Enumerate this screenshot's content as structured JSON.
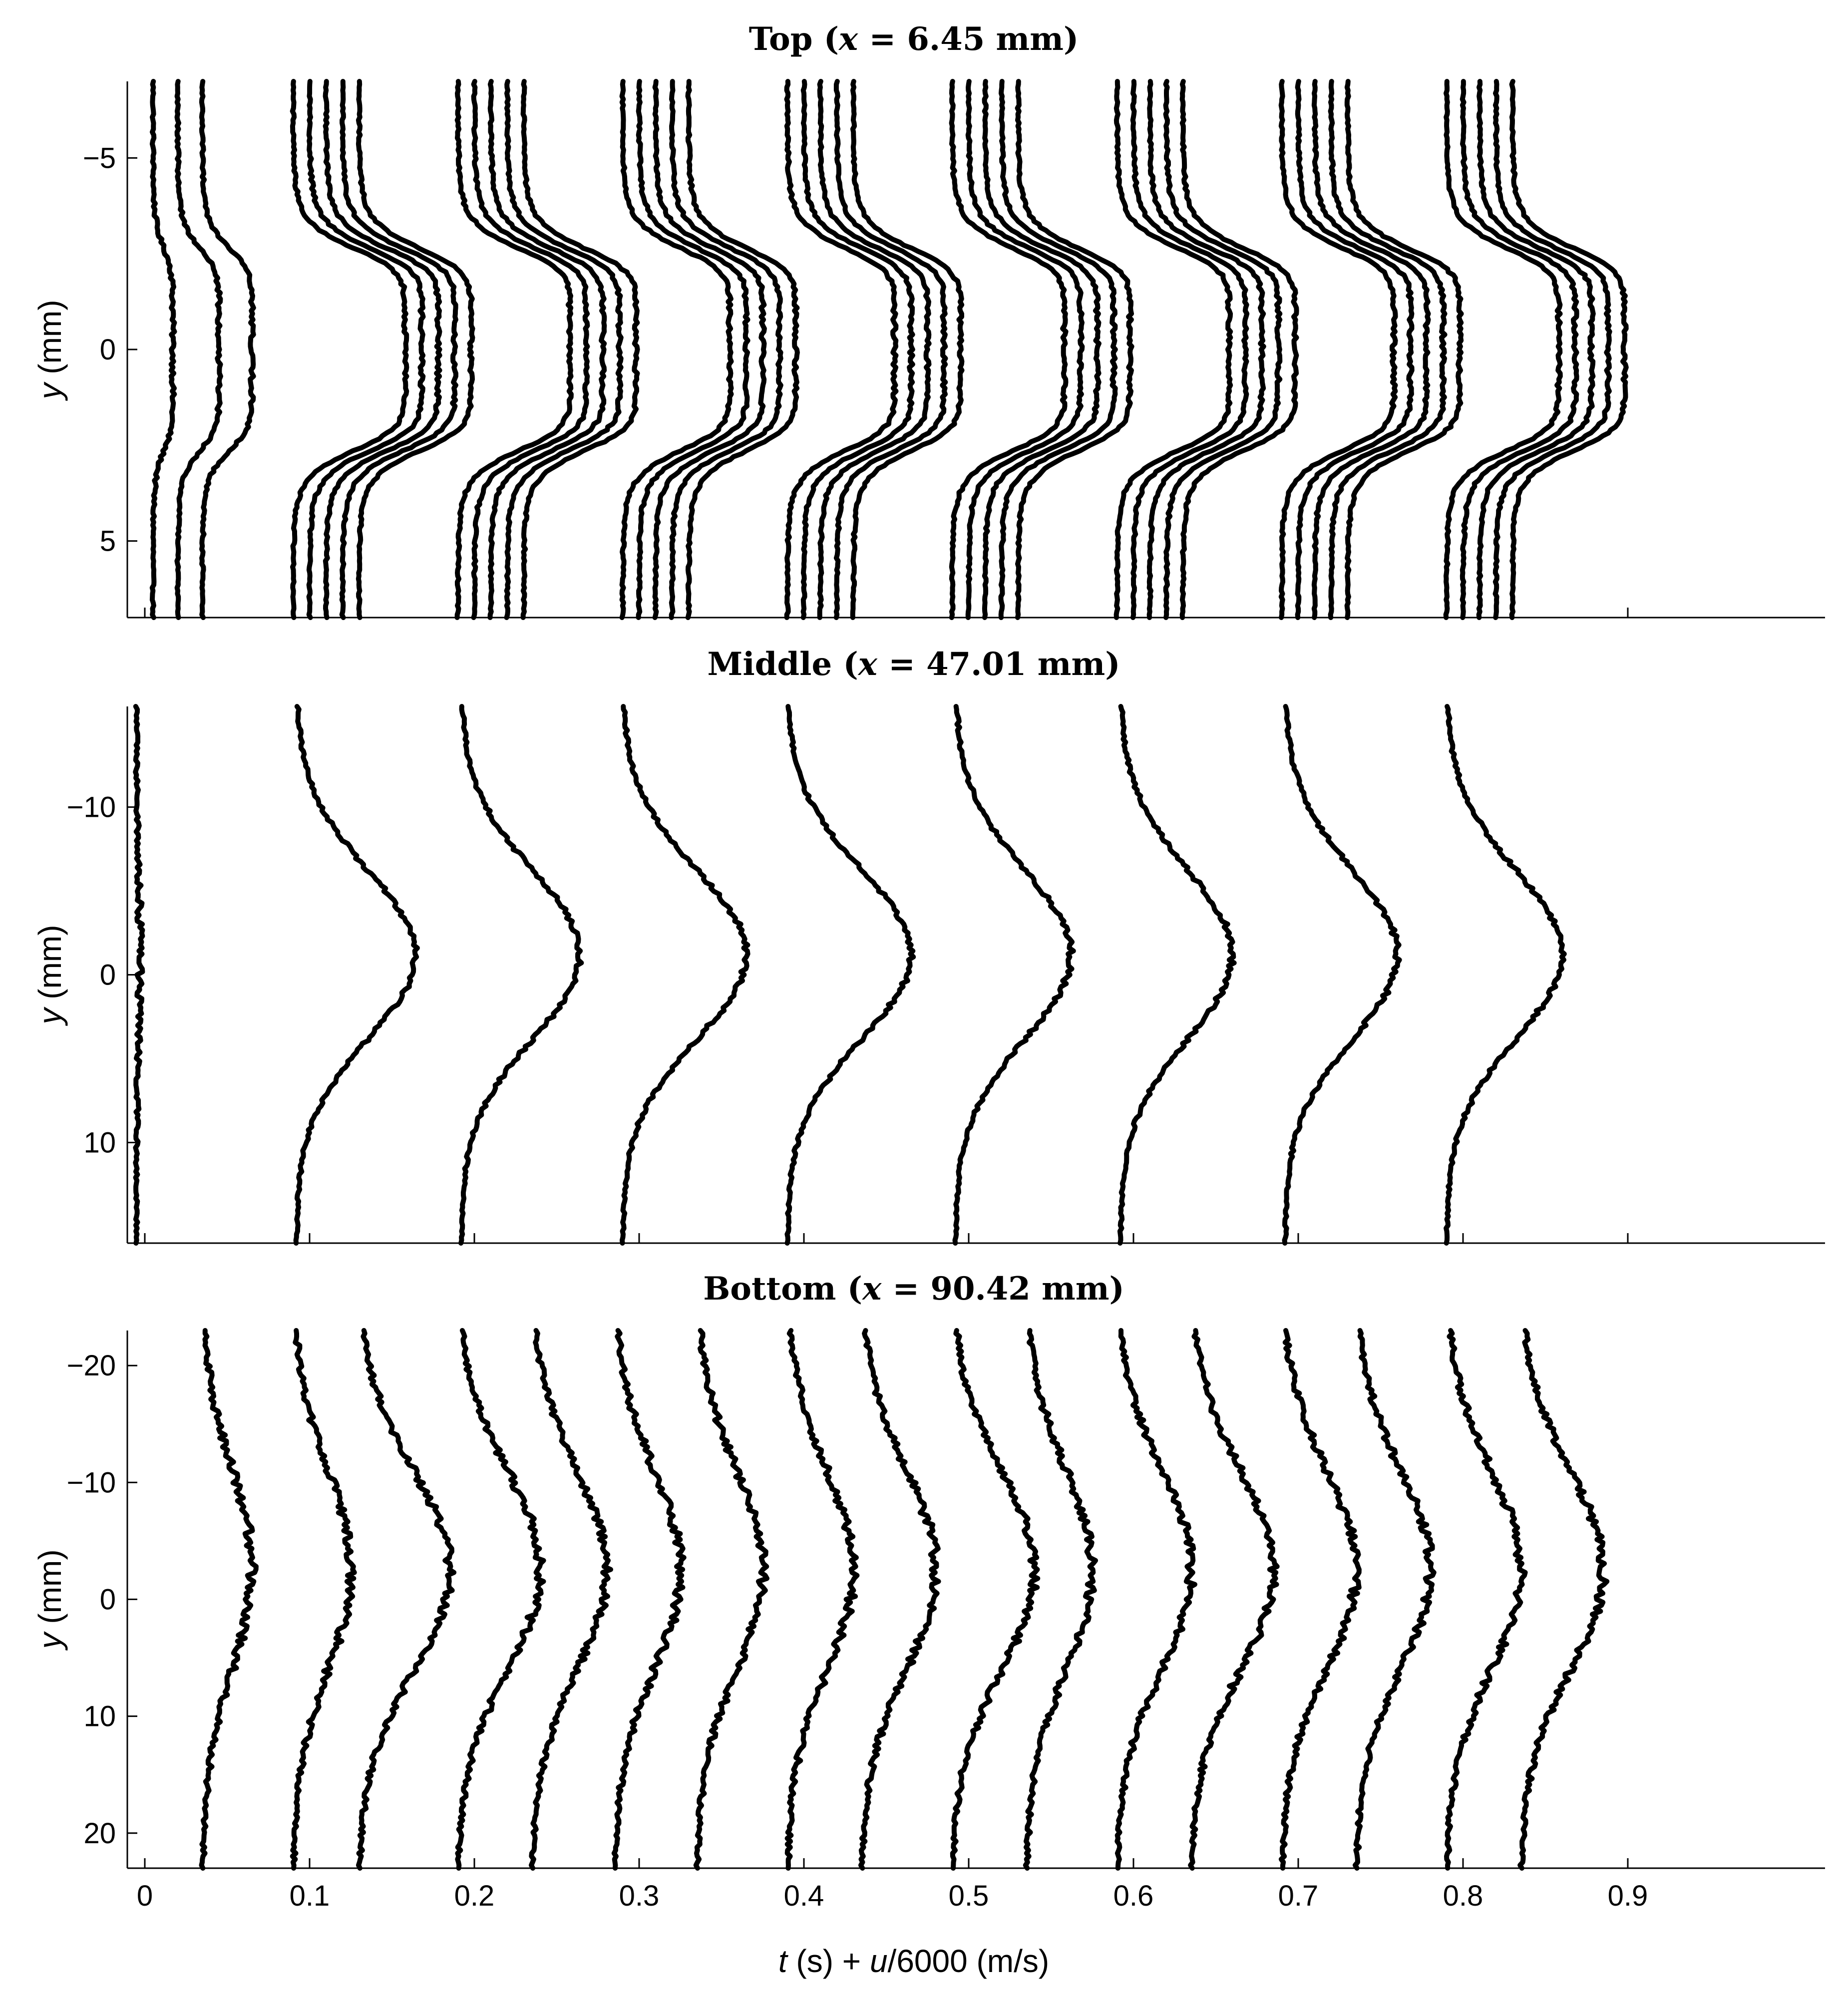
{
  "chart_data": [
    {
      "panel": "top",
      "type": "line",
      "title": "Top",
      "title_var": "x",
      "title_value": " = 6.45 mm",
      "ylabel_var": "y",
      "ylabel_unit": " (mm)",
      "ylim": [
        -7,
        7
      ],
      "y_ticks": [
        -5,
        0,
        5
      ],
      "y_tick_labels": [
        "−5",
        "0",
        "5"
      ],
      "x_ticks": [
        0,
        0.1,
        0.2,
        0.3,
        0.4,
        0.5,
        0.6,
        0.7,
        0.8,
        0.9
      ],
      "profile_shape": "plateau",
      "profile_width_mm": 2.7,
      "groups": [
        {
          "times": [
            0.005,
            0.02,
            0.035
          ],
          "peaks": [
            0.012,
            0.025,
            0.03
          ]
        },
        {
          "times": [
            0.09,
            0.1,
            0.11,
            0.12,
            0.13
          ],
          "peaks": [
            0.068,
            0.068,
            0.068,
            0.068,
            0.068
          ]
        },
        {
          "times": [
            0.19,
            0.2,
            0.21,
            0.22,
            0.23
          ],
          "peaks": [
            0.068,
            0.068,
            0.068,
            0.068,
            0.068
          ]
        },
        {
          "times": [
            0.29,
            0.3,
            0.31,
            0.32,
            0.33
          ],
          "peaks": [
            0.065,
            0.065,
            0.065,
            0.065,
            0.065
          ]
        },
        {
          "times": [
            0.39,
            0.4,
            0.41,
            0.42,
            0.43
          ],
          "peaks": [
            0.065,
            0.065,
            0.065,
            0.065,
            0.065
          ]
        },
        {
          "times": [
            0.49,
            0.5,
            0.51,
            0.52,
            0.53
          ],
          "peaks": [
            0.068,
            0.068,
            0.068,
            0.068,
            0.068
          ]
        },
        {
          "times": [
            0.59,
            0.6,
            0.61,
            0.62,
            0.63
          ],
          "peaks": [
            0.068,
            0.068,
            0.068,
            0.068,
            0.068
          ]
        },
        {
          "times": [
            0.69,
            0.7,
            0.71,
            0.72,
            0.73
          ],
          "peaks": [
            0.068,
            0.068,
            0.068,
            0.068,
            0.068
          ]
        },
        {
          "times": [
            0.79,
            0.8,
            0.81,
            0.82,
            0.83
          ],
          "peaks": [
            0.068,
            0.068,
            0.068,
            0.068,
            0.068
          ]
        }
      ]
    },
    {
      "panel": "middle",
      "type": "line",
      "title": "Middle",
      "title_var": "x",
      "title_value": " = 47.01 mm",
      "ylabel_var": "y",
      "ylabel_unit": " (mm)",
      "ylim": [
        -16,
        16
      ],
      "y_ticks": [
        -10,
        0,
        10
      ],
      "y_tick_labels": [
        "−10",
        "0",
        "10"
      ],
      "x_ticks": [
        0,
        0.1,
        0.2,
        0.3,
        0.4,
        0.5,
        0.6,
        0.7,
        0.8,
        0.9
      ],
      "profile_shape": "peak",
      "profile_width_mm": 5.0,
      "groups": [
        {
          "times": [
            -0.005
          ],
          "peaks": [
            0.002
          ]
        },
        {
          "times": [
            0.092
          ],
          "peaks": [
            0.072
          ]
        },
        {
          "times": [
            0.192
          ],
          "peaks": [
            0.072
          ]
        },
        {
          "times": [
            0.29
          ],
          "peaks": [
            0.075
          ]
        },
        {
          "times": [
            0.39
          ],
          "peaks": [
            0.075
          ]
        },
        {
          "times": [
            0.492
          ],
          "peaks": [
            0.07
          ]
        },
        {
          "times": [
            0.592
          ],
          "peaks": [
            0.068
          ]
        },
        {
          "times": [
            0.692
          ],
          "peaks": [
            0.068
          ]
        },
        {
          "times": [
            0.79
          ],
          "peaks": [
            0.07
          ]
        }
      ]
    },
    {
      "panel": "bottom",
      "type": "line",
      "title": "Bottom",
      "title_var": "x",
      "title_value": " = 90.42 mm",
      "ylabel_var": "y",
      "ylabel_unit": " (mm)",
      "ylim": [
        -23,
        23
      ],
      "y_ticks": [
        -20,
        -10,
        0,
        10,
        20
      ],
      "y_tick_labels": [
        "−20",
        "−10",
        "0",
        "10",
        "20"
      ],
      "x_ticks": [
        0,
        0.1,
        0.2,
        0.3,
        0.4,
        0.5,
        0.6,
        0.7,
        0.8,
        0.9
      ],
      "x_tick_labels": [
        "0",
        "0.1",
        "0.2",
        "0.3",
        "0.4",
        "0.5",
        "0.6",
        "0.7",
        "0.8",
        "0.9"
      ],
      "xlabel_var1": "t",
      "xlabel_mid1": " (s) + ",
      "xlabel_var2": "u",
      "xlabel_mid2": "/6000 (m/s)",
      "profile_shape": "peak",
      "profile_width_mm": 8.5,
      "groups": [
        {
          "times": [
            0.035,
            0.09,
            0.13,
            0.19,
            0.235,
            0.285,
            0.335,
            0.39,
            0.435,
            0.49,
            0.535,
            0.59,
            0.635,
            0.69,
            0.735,
            0.79,
            0.835
          ],
          "peaks": [
            0.03,
            0.035,
            0.055,
            0.05,
            0.045,
            0.04,
            0.04,
            0.04,
            0.045,
            0.05,
            0.04,
            0.045,
            0.05,
            0.045,
            0.045,
            0.045,
            0.05
          ]
        }
      ]
    }
  ]
}
